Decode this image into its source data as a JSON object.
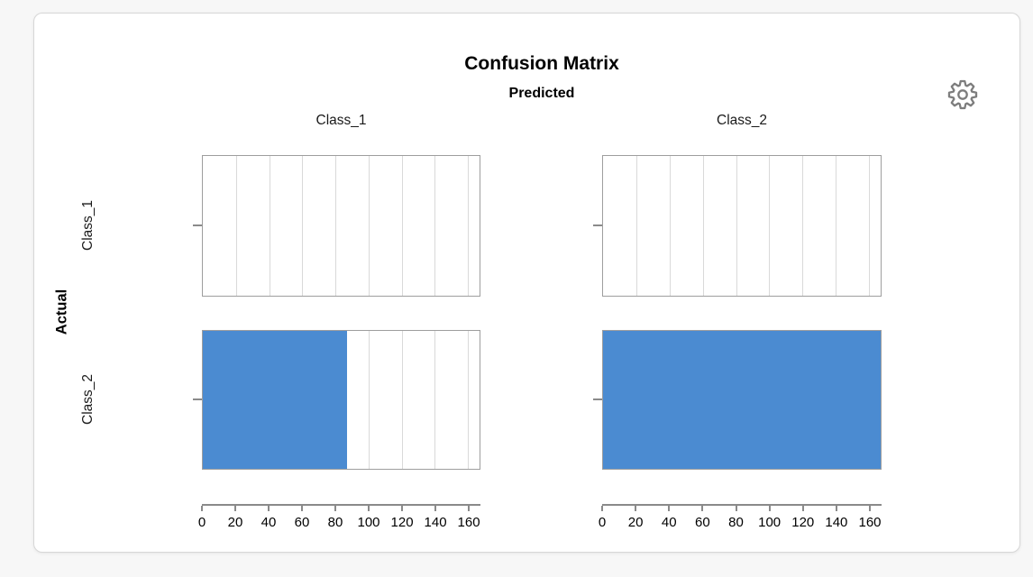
{
  "page": {
    "background_color": "#f7f7f7"
  },
  "card": {
    "background_color": "#ffffff",
    "border_color": "#d7d7d7"
  },
  "toolbar": {
    "settings_icon": "gear-icon"
  },
  "chart_data": {
    "type": "bar",
    "orientation": "horizontal",
    "title": "Confusion Matrix",
    "x_dimension": "Predicted",
    "y_dimension": "Actual",
    "columns": [
      "Class_1",
      "Class_2"
    ],
    "rows": [
      "Class_1",
      "Class_2"
    ],
    "matrix": [
      [
        0,
        0
      ],
      [
        87,
        167
      ]
    ],
    "xlim": [
      0,
      167
    ],
    "x_ticks": [
      0,
      20,
      40,
      60,
      80,
      100,
      120,
      140,
      160
    ],
    "grid": true,
    "legend": "none",
    "bar_color": "#4b8bd1",
    "gridline_color": "#d9d9d9",
    "panel_border_color": "#9e9e9e",
    "axis_color": "#8a8a8a",
    "icon_color": "#7d7d7d"
  }
}
